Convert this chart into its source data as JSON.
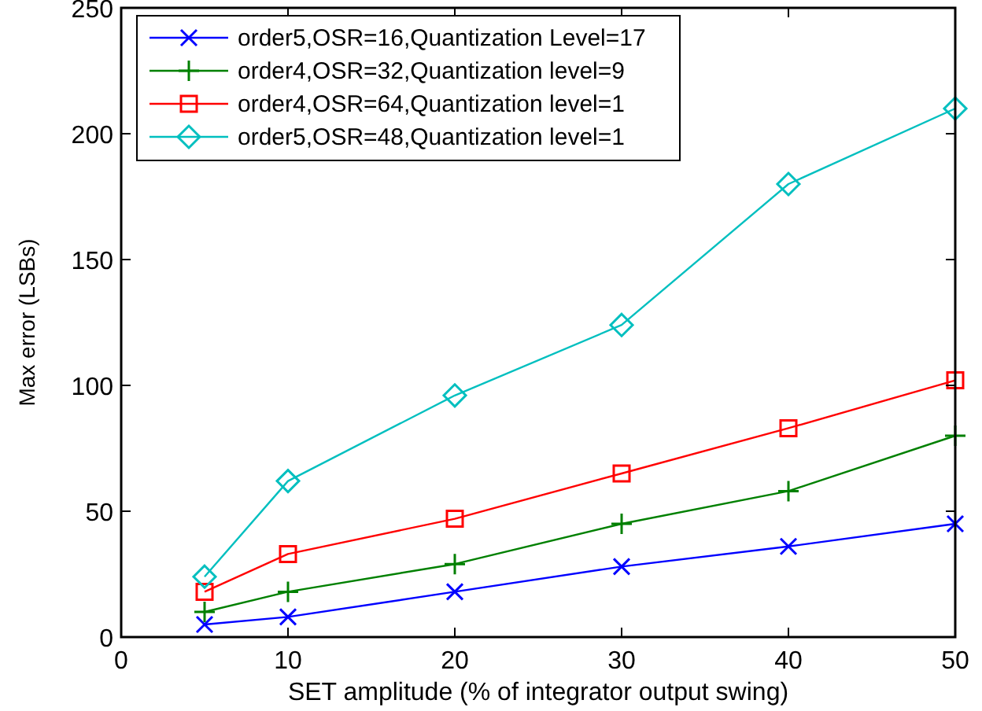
{
  "chart_data": {
    "type": "line",
    "xlabel": "SET amplitude (% of integrator output swing)",
    "ylabel": "Max error (LSBs)",
    "x": [
      5,
      10,
      20,
      30,
      40,
      50
    ],
    "xlim": [
      0,
      50
    ],
    "xticks": [
      0,
      10,
      20,
      30,
      40,
      50
    ],
    "ylim": [
      0,
      250
    ],
    "yticks": [
      0,
      50,
      100,
      150,
      200,
      250
    ],
    "legend": "top left",
    "grid": false,
    "series": [
      {
        "name": "order5,OSR=16,Quantization Level=17",
        "color": "#0000ff",
        "marker": "cross",
        "values": [
          5,
          8,
          18,
          28,
          36,
          45
        ]
      },
      {
        "name": "order4,OSR=32,Quantization level=9",
        "color": "#008000",
        "marker": "plus",
        "values": [
          10,
          18,
          29,
          45,
          58,
          80
        ]
      },
      {
        "name": "order4,OSR=64,Quantization level=1",
        "color": "#ff0000",
        "marker": "square",
        "values": [
          18,
          33,
          47,
          65,
          83,
          102
        ]
      },
      {
        "name": "order5,OSR=48,Quantization level=1",
        "color": "#00bfbf",
        "marker": "diamond",
        "values": [
          24,
          62,
          96,
          124,
          180,
          210
        ]
      }
    ]
  }
}
